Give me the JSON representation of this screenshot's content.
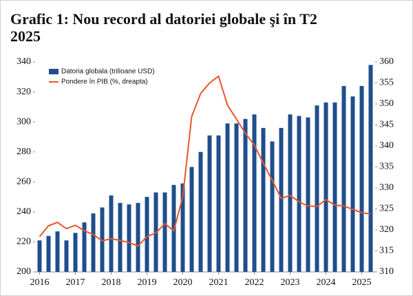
{
  "chart_data": {
    "type": "bar",
    "title": "Grafic 1: Nou record al datoriei globale şi în T2 2025",
    "categories": [
      "2016",
      null,
      null,
      null,
      "2017",
      null,
      null,
      null,
      "2018",
      null,
      null,
      null,
      "2019",
      null,
      null,
      null,
      "2020",
      null,
      null,
      null,
      "2021",
      null,
      null,
      null,
      "2022",
      null,
      null,
      null,
      "2023",
      null,
      null,
      null,
      "2024",
      null,
      null,
      null,
      "2025",
      null
    ],
    "series": [
      {
        "name": "Datoria globala (trilioane USD)",
        "type": "bar",
        "color": "#1f4e8c",
        "values": [
          221,
          224,
          227,
          221,
          226,
          233,
          239,
          243,
          251,
          246,
          245,
          246,
          250,
          253,
          253,
          258,
          259,
          270,
          280,
          291,
          291,
          299,
          299,
          302,
          305,
          296,
          287,
          296,
          305,
          304,
          303,
          311,
          313,
          313,
          324,
          317,
          324,
          338
        ]
      },
      {
        "name": "Pondere în PIB (%, dreapta)",
        "type": "line",
        "axis": "y2",
        "color": "#e8552a",
        "values": [
          318.4,
          321,
          321.8,
          320.3,
          321.1,
          319.8,
          318.9,
          317.4,
          317.9,
          317.5,
          317,
          316.2,
          318.4,
          319.3,
          321.5,
          319.8,
          327.9,
          347,
          352.5,
          355,
          356.6,
          349.7,
          346.4,
          343,
          340.2,
          335.9,
          331.8,
          327.5,
          328.2,
          326.7,
          325.7,
          325.6,
          327.2,
          325.9,
          325.7,
          324.9,
          324.1,
          323.8
        ]
      }
    ],
    "ylim": [
      200,
      340
    ],
    "yticks": [
      200,
      220,
      240,
      260,
      280,
      300,
      320,
      340
    ],
    "y2lim": [
      310,
      360
    ],
    "y2ticks": [
      310,
      315,
      320,
      325,
      330,
      335,
      340,
      345,
      350,
      355,
      360
    ],
    "legend": "upper left"
  }
}
